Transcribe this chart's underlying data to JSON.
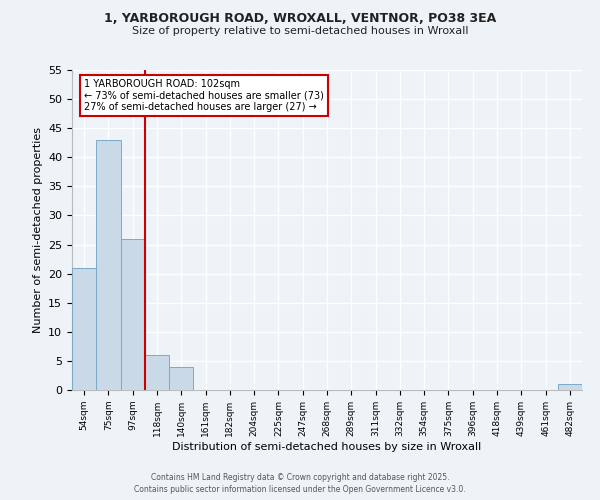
{
  "title": "1, YARBOROUGH ROAD, WROXALL, VENTNOR, PO38 3EA",
  "subtitle": "Size of property relative to semi-detached houses in Wroxall",
  "bar_values": [
    21,
    43,
    26,
    6,
    4,
    0,
    0,
    0,
    0,
    0,
    0,
    0,
    0,
    0,
    0,
    0,
    0,
    0,
    0,
    0,
    1
  ],
  "bin_labels": [
    "54sqm",
    "75sqm",
    "97sqm",
    "118sqm",
    "140sqm",
    "161sqm",
    "182sqm",
    "204sqm",
    "225sqm",
    "247sqm",
    "268sqm",
    "289sqm",
    "311sqm",
    "332sqm",
    "354sqm",
    "375sqm",
    "396sqm",
    "418sqm",
    "439sqm",
    "461sqm",
    "482sqm"
  ],
  "bar_color": "#c9d9e8",
  "bar_edgecolor": "#7aaac8",
  "bg_color": "#eef3f8",
  "grid_color": "#ffffff",
  "vline_color": "#cc0000",
  "ylabel": "Number of semi-detached properties",
  "xlabel": "Distribution of semi-detached houses by size in Wroxall",
  "ylim": [
    0,
    55
  ],
  "yticks": [
    0,
    5,
    10,
    15,
    20,
    25,
    30,
    35,
    40,
    45,
    50,
    55
  ],
  "annotation_title": "1 YARBOROUGH ROAD: 102sqm",
  "annotation_line1": "← 73% of semi-detached houses are smaller (73)",
  "annotation_line2": "27% of semi-detached houses are larger (27) →",
  "footer1": "Contains HM Land Registry data © Crown copyright and database right 2025.",
  "footer2": "Contains public sector information licensed under the Open Government Licence v3.0."
}
